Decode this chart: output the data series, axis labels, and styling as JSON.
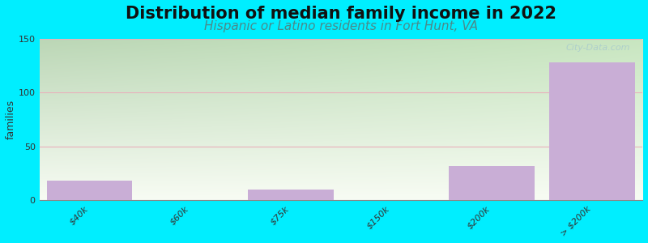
{
  "title": "Distribution of median family income in 2022",
  "subtitle": "Hispanic or Latino residents in Fort Hunt, VA",
  "categories": [
    "$40k",
    "$60k",
    "$75k",
    "$150k",
    "$200k",
    "> $200k"
  ],
  "values": [
    18,
    0,
    10,
    0,
    32,
    128
  ],
  "bar_color": "#c9aed6",
  "bg_top_color": "#c8e6c0",
  "bg_bottom_color": "#f5f8f0",
  "bg_outer": "#00eeff",
  "ylabel": "families",
  "ylim": [
    0,
    150
  ],
  "yticks": [
    0,
    50,
    100,
    150
  ],
  "grid_color": "#e8b0bb",
  "title_fontsize": 15,
  "title_color": "#111111",
  "subtitle_fontsize": 11,
  "subtitle_color": "#4a8a8a",
  "watermark": "City-Data.com",
  "watermark_color": "#aacccc"
}
